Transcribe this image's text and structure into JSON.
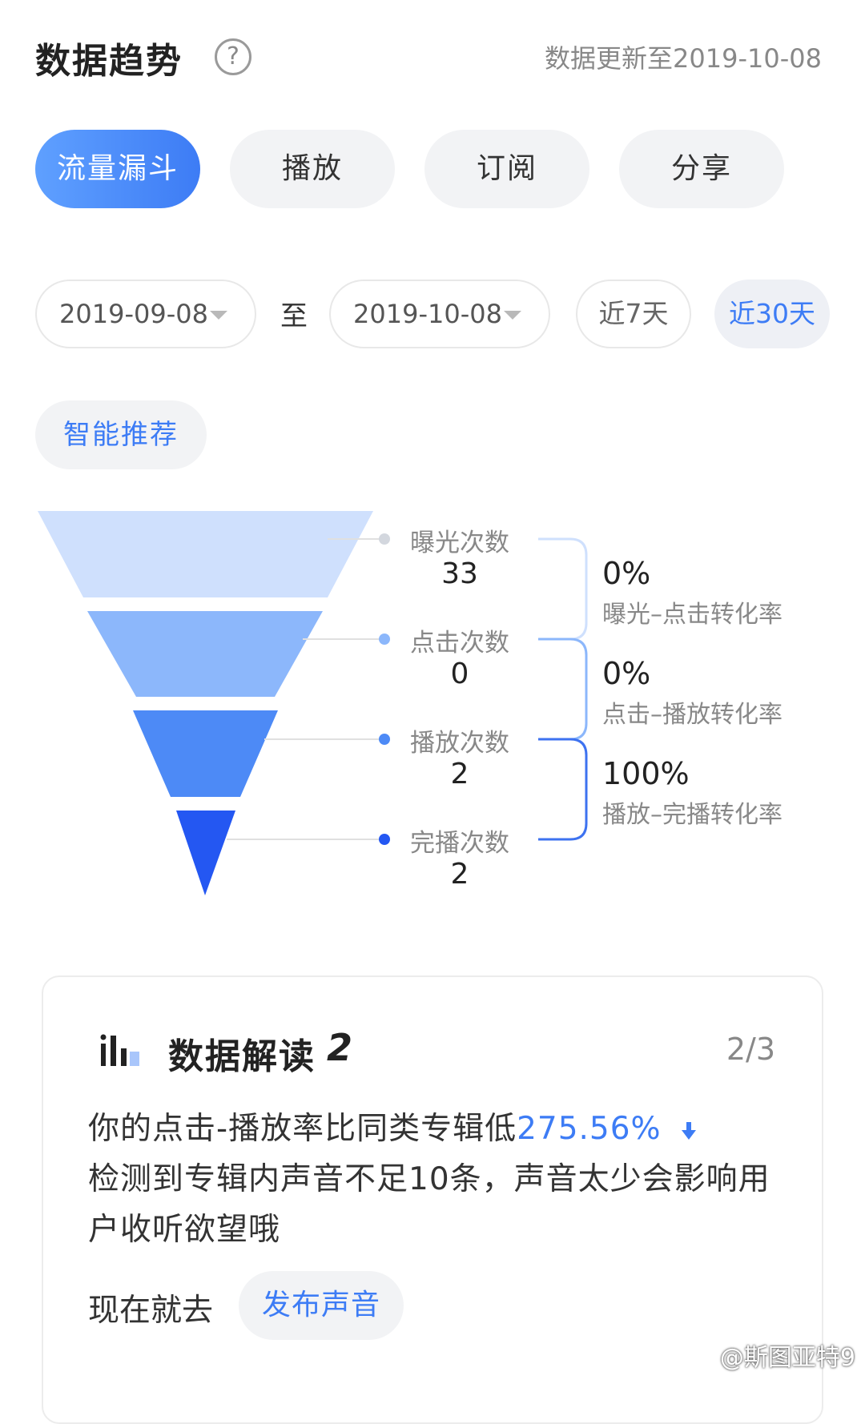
{
  "header": {
    "title": "数据趋势",
    "help_icon": "?",
    "updated": "数据更新至2019-10-08"
  },
  "tabs": [
    {
      "label": "流量漏斗",
      "active": true
    },
    {
      "label": "播放",
      "active": false
    },
    {
      "label": "订阅",
      "active": false
    },
    {
      "label": "分享",
      "active": false
    }
  ],
  "date_range": {
    "start": "2019-09-08",
    "to_label": "至",
    "end": "2019-10-08",
    "quick_7": "近7天",
    "quick_30": "近30天",
    "quick_30_selected": true
  },
  "smart_recommend": "智能推荐",
  "funnel": {
    "stages": [
      {
        "label": "曝光次数",
        "value": "33",
        "color": "#cfe0fd"
      },
      {
        "label": "点击次数",
        "value": "0",
        "color": "#8cb7fb"
      },
      {
        "label": "播放次数",
        "value": "2",
        "color": "#4d8af6"
      },
      {
        "label": "完播次数",
        "value": "2",
        "color": "#2457f2"
      }
    ],
    "rates": [
      {
        "value": "0%",
        "label": "曝光–点击转化率"
      },
      {
        "value": "0%",
        "label": "点击–播放转化率"
      },
      {
        "value": "100%",
        "label": "播放–完播转化率"
      }
    ]
  },
  "insight_card": {
    "icon": "bar-chart-icon",
    "title": "数据解读",
    "count": "2",
    "page": "2/3",
    "line1_prefix": "你的点击-播放率比同类专辑低",
    "line1_highlight": "275.56%",
    "trend_icon": "down-arrow-icon",
    "line2": "检测到专辑内声音不足10条，声音太少会影响用",
    "line3": "户收听欲望哦",
    "go_now": "现在就去",
    "action_button": "发布声音"
  },
  "watermark": "@斯图亚特9"
}
